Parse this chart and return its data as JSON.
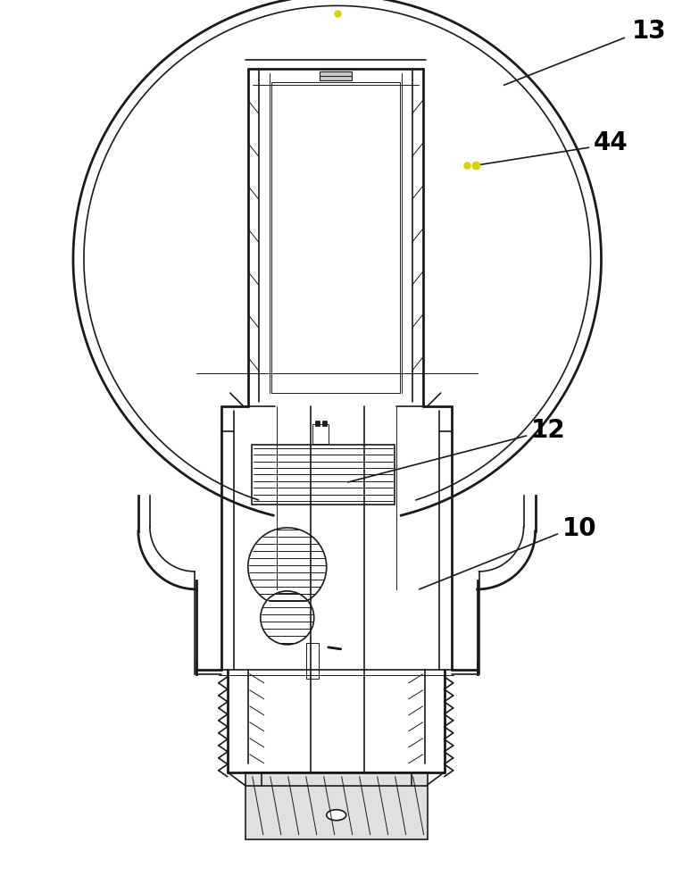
{
  "bg_color": "#ffffff",
  "line_color": "#1a1a1a",
  "gray_fill": "#c8c8c8",
  "light_gray": "#e0e0e0",
  "yellow_dot": "#d4d400",
  "label_13": "13",
  "label_44": "44",
  "label_12": "12",
  "label_10": "10",
  "label_fontsize": 20,
  "figsize": [
    7.55,
    10.0
  ],
  "dpi": 100
}
